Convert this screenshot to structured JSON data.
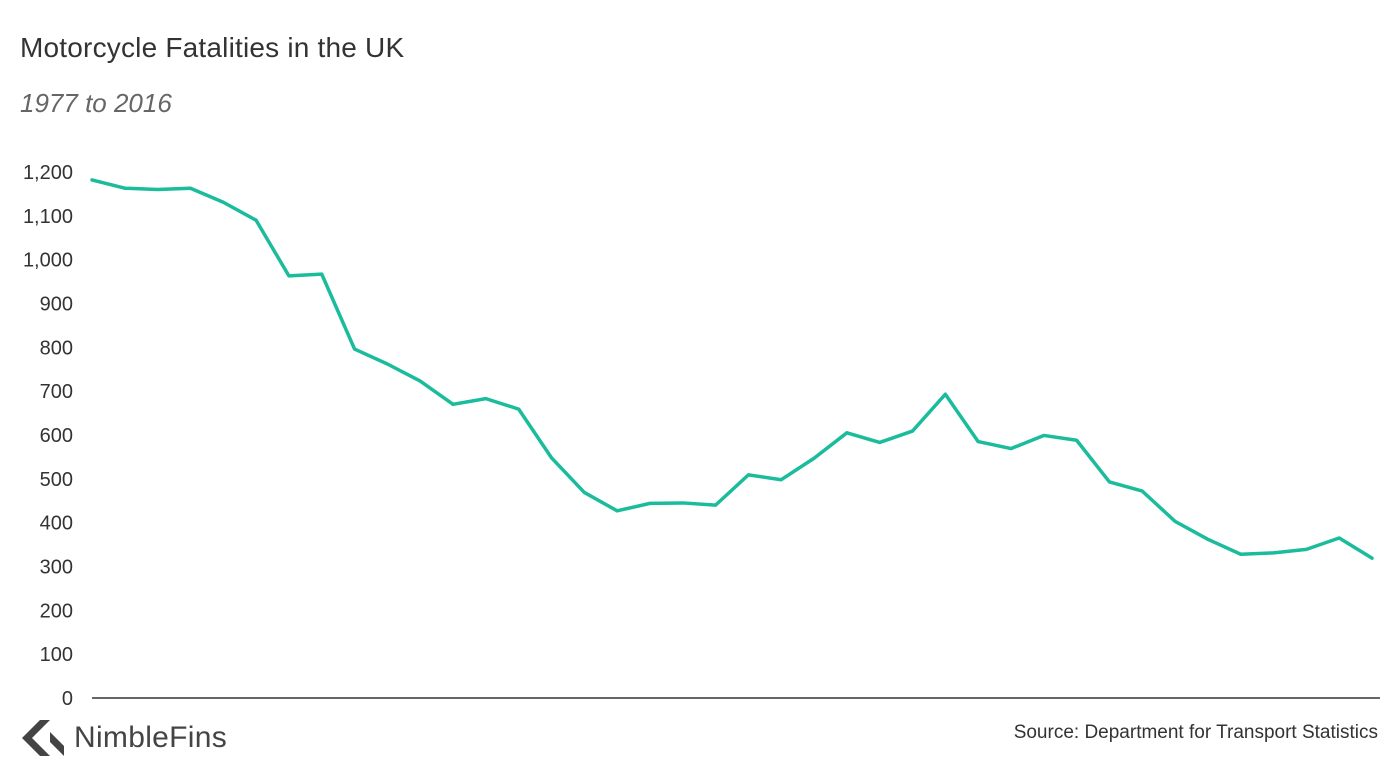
{
  "title": "Motorcycle Fatalities in the UK",
  "subtitle": "1977 to 2016",
  "source": "Source: Department for Transport Statistics",
  "brand": {
    "name": "NimbleFins",
    "icon": "nimblefins-logo-icon"
  },
  "colors": {
    "line": "#1ABC9C",
    "axis": "#333333",
    "text": "#333333"
  },
  "chart_data": {
    "type": "line",
    "title": "Motorcycle Fatalities in the UK",
    "subtitle": "1977 to 2016",
    "xlabel": "",
    "ylabel": "",
    "ylim": [
      0,
      1200
    ],
    "yticks": [
      0,
      100,
      200,
      300,
      400,
      500,
      600,
      700,
      800,
      900,
      1000,
      1100,
      1200
    ],
    "ytick_labels": [
      "0",
      "100",
      "200",
      "300",
      "400",
      "500",
      "600",
      "700",
      "800",
      "900",
      "1,000",
      "1,100",
      "1,200"
    ],
    "grid": false,
    "x": [
      1977,
      1978,
      1979,
      1980,
      1981,
      1982,
      1983,
      1984,
      1985,
      1986,
      1987,
      1988,
      1989,
      1990,
      1991,
      1992,
      1993,
      1994,
      1995,
      1996,
      1997,
      1998,
      1999,
      2000,
      2001,
      2002,
      2003,
      2004,
      2005,
      2006,
      2007,
      2008,
      2009,
      2010,
      2011,
      2012,
      2013,
      2014,
      2015,
      2016
    ],
    "series": [
      {
        "values": [
          1182,
          1163,
          1160,
          1163,
          1131,
          1090,
          963,
          967,
          796,
          762,
          723,
          670,
          683,
          659,
          548,
          469,
          427,
          444,
          445,
          440,
          509,
          498,
          547,
          605,
          583,
          609,
          693,
          585,
          569,
          599,
          588,
          493,
          472,
          403,
          362,
          328,
          331,
          339,
          365,
          319
        ]
      }
    ]
  }
}
